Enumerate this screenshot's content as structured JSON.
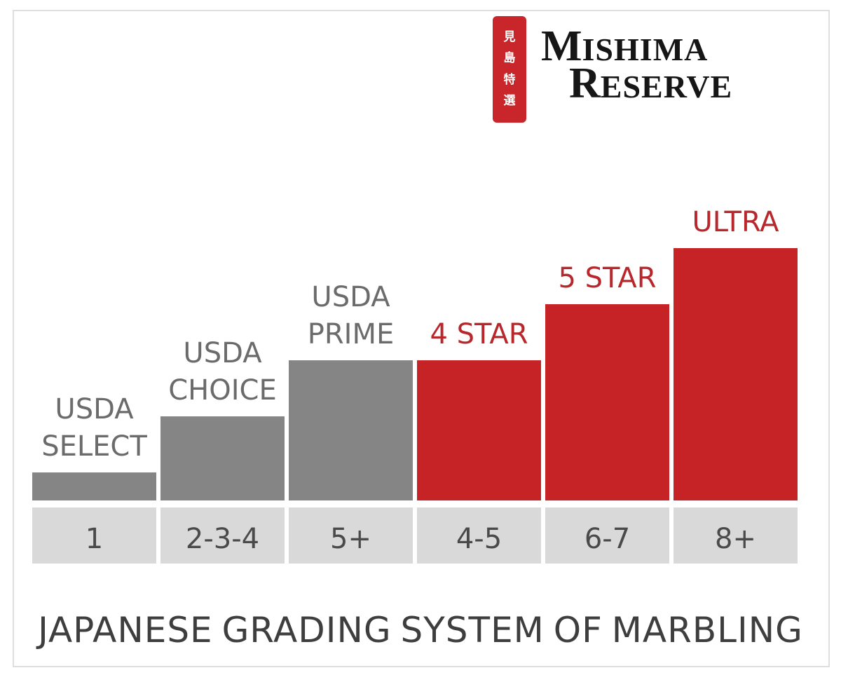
{
  "brand": {
    "seal_chars": [
      "見",
      "島",
      "特",
      "選"
    ],
    "logo_line1_cap": "M",
    "logo_line1_rest": "ISHIMA",
    "logo_line2_cap": "R",
    "logo_line2_rest": "ESERVE",
    "seal_color": "#c8262b"
  },
  "chart_data": {
    "type": "bar",
    "title": "JAPANESE GRADING SYSTEM OF MARBLING",
    "title_words": [
      "JAPANESE",
      "GRADING",
      "SYSTEM",
      "OF",
      "MARBLING"
    ],
    "categories": [
      "1",
      "2-3-4",
      "5+",
      "4-5",
      "6-7",
      "8+"
    ],
    "labels": [
      [
        "USDA",
        "SELECT"
      ],
      [
        "USDA",
        "CHOICE"
      ],
      [
        "USDA",
        "PRIME"
      ],
      [
        "4 STAR"
      ],
      [
        "5 STAR"
      ],
      [
        "ULTRA"
      ]
    ],
    "values": [
      1,
      3,
      5,
      5,
      7,
      9
    ],
    "ylim": [
      0,
      9
    ],
    "colors": [
      "#858585",
      "#858585",
      "#858585",
      "#c62326",
      "#c62326",
      "#c62326"
    ],
    "label_colors": [
      "#6b6b6b",
      "#6b6b6b",
      "#6b6b6b",
      "#b8272b",
      "#b8272b",
      "#b8272b"
    ],
    "category_box_color": "#d9d9d9",
    "grid": false,
    "legend": "none"
  }
}
